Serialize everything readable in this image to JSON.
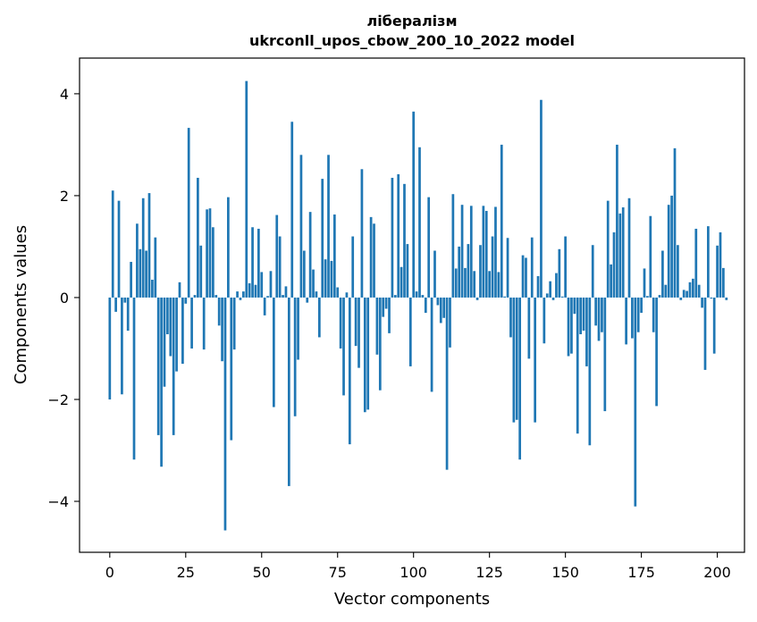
{
  "chart_data": {
    "type": "bar",
    "title_line1": "лібералізм",
    "title_line2": "ukrconll_upos_cbow_200_10_2022 model",
    "xlabel": "Vector components",
    "ylabel": "Components values",
    "xlim": [
      -9.95,
      208.95
    ],
    "ylim": [
      -5.0,
      4.7
    ],
    "xticks": [
      0,
      25,
      50,
      75,
      100,
      125,
      150,
      175,
      200
    ],
    "yticks": [
      -4,
      -2,
      0,
      2,
      4
    ],
    "ytick_labels": [
      "−4",
      "−2",
      "0",
      "2",
      "4"
    ],
    "bar_color": "#1f77b4",
    "grid": false,
    "values": [
      -2.0,
      2.1,
      -0.28,
      1.9,
      -1.9,
      -0.1,
      -0.65,
      0.7,
      -3.18,
      1.45,
      0.95,
      1.95,
      0.92,
      2.05,
      0.35,
      1.18,
      -2.7,
      -3.32,
      -1.75,
      -0.72,
      -1.15,
      -2.7,
      -1.45,
      0.3,
      -1.3,
      -0.12,
      3.33,
      -1.0,
      0.05,
      2.35,
      1.02,
      -1.02,
      1.73,
      1.75,
      1.38,
      0.05,
      -0.55,
      -1.25,
      -4.57,
      1.97,
      -2.8,
      -1.02,
      0.12,
      -0.05,
      0.12,
      4.25,
      0.28,
      1.38,
      0.25,
      1.35,
      0.5,
      -0.35,
      0.03,
      0.52,
      -2.15,
      1.62,
      1.2,
      0.05,
      0.22,
      -3.7,
      3.45,
      -2.33,
      -1.22,
      2.8,
      0.92,
      -0.1,
      1.68,
      0.55,
      0.12,
      -0.78,
      2.33,
      0.75,
      2.8,
      0.72,
      1.63,
      0.2,
      -1.0,
      -1.92,
      0.1,
      -2.88,
      1.2,
      -0.95,
      -1.38,
      2.52,
      -2.25,
      -2.2,
      1.58,
      1.45,
      -1.12,
      -1.82,
      -0.38,
      -0.22,
      -0.7,
      2.35,
      0.05,
      2.42,
      0.6,
      2.23,
      1.05,
      -1.35,
      3.65,
      0.12,
      2.95,
      0.05,
      -0.3,
      1.97,
      -1.85,
      0.92,
      -0.15,
      -0.5,
      -0.4,
      -3.38,
      -0.98,
      2.03,
      0.57,
      1.0,
      1.82,
      0.58,
      1.05,
      1.8,
      0.52,
      -0.05,
      1.03,
      1.8,
      1.7,
      0.52,
      1.2,
      1.78,
      0.5,
      3.0,
      0.02,
      1.17,
      -0.78,
      -2.45,
      -2.4,
      -3.18,
      0.83,
      0.78,
      -1.2,
      1.18,
      -2.45,
      0.42,
      3.88,
      -0.9,
      0.08,
      0.32,
      -0.05,
      0.48,
      0.95,
      0.02,
      1.2,
      -1.15,
      -1.1,
      -0.32,
      -2.67,
      -0.72,
      -0.65,
      -1.35,
      -2.9,
      1.03,
      -0.55,
      -0.85,
      -0.68,
      -2.23,
      1.9,
      0.65,
      1.28,
      3.0,
      1.65,
      1.77,
      -0.92,
      1.95,
      -0.8,
      -4.1,
      -0.68,
      -0.3,
      0.57,
      0.03,
      1.6,
      -0.68,
      -2.13,
      0.05,
      0.92,
      0.25,
      1.82,
      2.0,
      2.93,
      1.03,
      -0.05,
      0.15,
      0.13,
      0.3,
      0.37,
      1.35,
      0.25,
      -0.2,
      -1.42,
      1.4,
      -0.02,
      -1.1,
      1.02,
      1.28,
      0.58,
      -0.05
    ]
  }
}
